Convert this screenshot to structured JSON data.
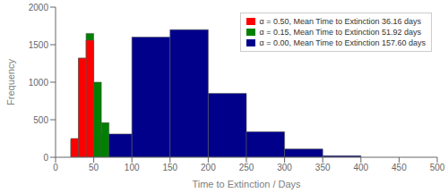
{
  "chart_data": {
    "type": "histogram",
    "xlabel": "Time to Extinction / Days",
    "ylabel": "Frequency",
    "xlim": [
      0,
      500
    ],
    "ylim": [
      0,
      2000
    ],
    "xticks": [
      0,
      50,
      100,
      150,
      200,
      250,
      300,
      350,
      400,
      450,
      500
    ],
    "yticks": [
      0,
      500,
      1000,
      1500,
      2000
    ],
    "grid": false,
    "legend": "upper right",
    "series": [
      {
        "name": "α = 0.50, Mean Time to Extinction 36.16 days",
        "color": "#FF0000",
        "bins": [
          20,
          30,
          40,
          50
        ],
        "values": [
          250,
          1320,
          1560
        ]
      },
      {
        "name": "α = 0.15, Mean Time to Extinction 51.92 days",
        "color": "#008000",
        "bins": [
          20,
          30,
          40,
          50,
          60,
          70
        ],
        "values": [
          230,
          1320,
          1650,
          1000,
          460
        ]
      },
      {
        "name": "α = 0.00, Mean Time to Extinction 157.60 days",
        "color": "#00008B",
        "bins": [
          50,
          100,
          150,
          200,
          250,
          300,
          350,
          400
        ],
        "values": [
          310,
          1600,
          1700,
          850,
          340,
          110,
          20
        ]
      }
    ]
  }
}
